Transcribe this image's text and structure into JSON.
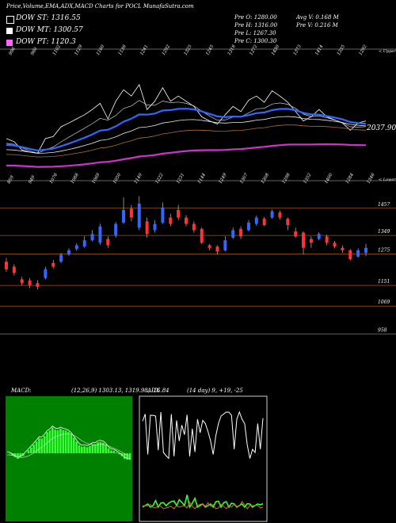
{
  "header": {
    "title": "Price,Volume,EMA,ADX,MACD Charts for POCL MunafaSutra.com",
    "dow_st": "DOW ST: 1316.55",
    "dow_mt": "DOW MT: 1300.57",
    "dow_pt": "DOW PT: 1120.3",
    "open": "Pre   O: 1280.00",
    "high": "Pre   H: 1316.00",
    "low": "Pre   L: 1267.30",
    "close": "Pre   C: 1300.30",
    "avg_v": "Avg V: 0.168   M",
    "pre_v": "Pre   V: 0.216   M"
  },
  "colors": {
    "dow_st": "#000000",
    "dow_mt": "#ffffff",
    "dow_pt": "#ff66ff",
    "bull": "#3366ff",
    "bear": "#ff3333",
    "level_line": "#a05a1a",
    "macd_bg": "#008000",
    "ema_blue": "#3366ff",
    "ema_magenta": "#cc33cc"
  },
  "ema_panel": {
    "upper_label": "< Upper",
    "value_label": "2037.90",
    "top_labels": [
      "996",
      "960",
      "1102",
      "1129",
      "1160",
      "1136",
      "1241",
      "1292",
      "1325",
      "1245",
      "1318",
      "1272",
      "1430",
      "1373",
      "1414",
      "1335",
      "1292"
    ]
  },
  "price_panel": {
    "lower_label": "< Lower",
    "top_labels": [
      "859",
      "949",
      "1076",
      "1088",
      "1069",
      "1050",
      "1140",
      "1222",
      "1231",
      "1144",
      "1249",
      "1307",
      "1308",
      "1298",
      "1352",
      "1400",
      "1284",
      "1346"
    ],
    "y_levels": [
      1457,
      1349,
      1275,
      1151,
      1069,
      958
    ]
  },
  "macd_panel": {
    "label": "MACD:",
    "params": "(12,26,9) 1303.13,  1319.98, -16.84"
  },
  "adx_panel": {
    "label": "ADX",
    "params": "(14 day) 9, +19, -25"
  },
  "chart_data": {
    "type": "candlestick",
    "title": "Price,Volume,EMA,ADX,MACD Charts for POCL",
    "y_levels": [
      1457,
      1349,
      1275,
      1151,
      1069,
      958
    ],
    "ylim": [
      900,
      1560
    ],
    "candles": [
      {
        "o": 1245,
        "c": 1215,
        "h": 1260,
        "l": 1205
      },
      {
        "o": 1225,
        "c": 1200,
        "h": 1235,
        "l": 1190
      },
      {
        "o": 1175,
        "c": 1160,
        "h": 1185,
        "l": 1150
      },
      {
        "o": 1170,
        "c": 1150,
        "h": 1180,
        "l": 1140
      },
      {
        "o": 1160,
        "c": 1145,
        "h": 1172,
        "l": 1135
      },
      {
        "o": 1180,
        "c": 1215,
        "h": 1225,
        "l": 1175
      },
      {
        "o": 1240,
        "c": 1225,
        "h": 1252,
        "l": 1218
      },
      {
        "o": 1245,
        "c": 1272,
        "h": 1280,
        "l": 1240
      },
      {
        "o": 1275,
        "c": 1290,
        "h": 1298,
        "l": 1268
      },
      {
        "o": 1295,
        "c": 1310,
        "h": 1318,
        "l": 1288
      },
      {
        "o": 1305,
        "c": 1330,
        "h": 1345,
        "l": 1300
      },
      {
        "o": 1330,
        "c": 1355,
        "h": 1370,
        "l": 1325
      },
      {
        "o": 1320,
        "c": 1385,
        "h": 1395,
        "l": 1312
      },
      {
        "o": 1335,
        "c": 1310,
        "h": 1345,
        "l": 1300
      },
      {
        "o": 1350,
        "c": 1395,
        "h": 1402,
        "l": 1340
      },
      {
        "o": 1400,
        "c": 1450,
        "h": 1500,
        "l": 1395
      },
      {
        "o": 1455,
        "c": 1420,
        "h": 1470,
        "l": 1405
      },
      {
        "o": 1380,
        "c": 1475,
        "h": 1505,
        "l": 1370
      },
      {
        "o": 1405,
        "c": 1355,
        "h": 1420,
        "l": 1340
      },
      {
        "o": 1370,
        "c": 1395,
        "h": 1410,
        "l": 1360
      },
      {
        "o": 1400,
        "c": 1460,
        "h": 1480,
        "l": 1395
      },
      {
        "o": 1420,
        "c": 1395,
        "h": 1435,
        "l": 1385
      },
      {
        "o": 1450,
        "c": 1420,
        "h": 1470,
        "l": 1410
      },
      {
        "o": 1420,
        "c": 1395,
        "h": 1430,
        "l": 1385
      },
      {
        "o": 1395,
        "c": 1370,
        "h": 1405,
        "l": 1360
      },
      {
        "o": 1375,
        "c": 1320,
        "h": 1380,
        "l": 1315
      },
      {
        "o": 1310,
        "c": 1300,
        "h": 1315,
        "l": 1290
      },
      {
        "o": 1305,
        "c": 1285,
        "h": 1310,
        "l": 1275
      },
      {
        "o": 1290,
        "c": 1330,
        "h": 1345,
        "l": 1285
      },
      {
        "o": 1340,
        "c": 1370,
        "h": 1380,
        "l": 1335
      },
      {
        "o": 1375,
        "c": 1345,
        "h": 1385,
        "l": 1335
      },
      {
        "o": 1370,
        "c": 1400,
        "h": 1410,
        "l": 1365
      },
      {
        "o": 1395,
        "c": 1420,
        "h": 1428,
        "l": 1388
      },
      {
        "o": 1415,
        "c": 1390,
        "h": 1422,
        "l": 1385
      },
      {
        "o": 1420,
        "c": 1445,
        "h": 1452,
        "l": 1415
      },
      {
        "o": 1440,
        "c": 1420,
        "h": 1448,
        "l": 1412
      },
      {
        "o": 1415,
        "c": 1390,
        "h": 1420,
        "l": 1370
      },
      {
        "o": 1365,
        "c": 1345,
        "h": 1380,
        "l": 1340
      },
      {
        "o": 1360,
        "c": 1300,
        "h": 1365,
        "l": 1275
      },
      {
        "o": 1335,
        "c": 1320,
        "h": 1345,
        "l": 1300
      },
      {
        "o": 1335,
        "c": 1355,
        "h": 1362,
        "l": 1330
      },
      {
        "o": 1345,
        "c": 1320,
        "h": 1352,
        "l": 1310
      },
      {
        "o": 1320,
        "c": 1305,
        "h": 1328,
        "l": 1298
      },
      {
        "o": 1300,
        "c": 1290,
        "h": 1310,
        "l": 1280
      },
      {
        "o": 1290,
        "c": 1255,
        "h": 1295,
        "l": 1250
      },
      {
        "o": 1265,
        "c": 1290,
        "h": 1298,
        "l": 1262
      },
      {
        "o": 1280,
        "c": 1300,
        "h": 1316,
        "l": 1267
      }
    ]
  }
}
